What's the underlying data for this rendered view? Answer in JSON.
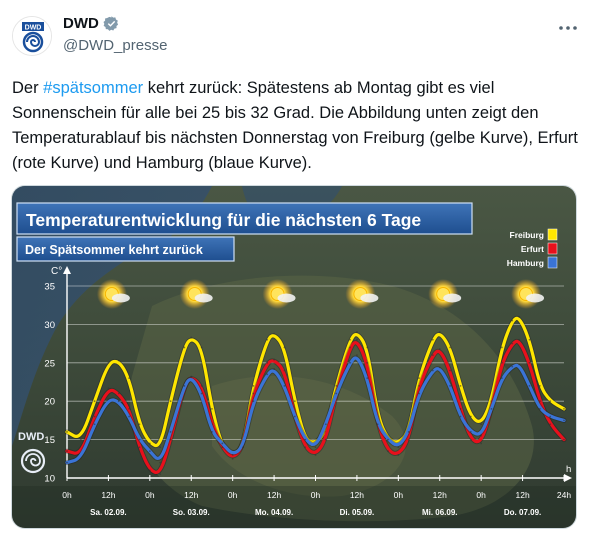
{
  "author": {
    "name": "DWD",
    "handle": "@DWD_presse",
    "logo_text": "DWD",
    "verified": true
  },
  "tweet": {
    "text_before": "Der ",
    "hashtag": "#spätsommer",
    "text_after": " kehrt zurück: Spätestens ab Montag gibt es viel Sonnenschein für alle  bei 25 bis 32 Grad. Die Abbildung unten zeigt den Temperaturablauf bis  nächsten Donnerstag von Freiburg (gelbe Kurve), Erfurt (rote Kurve) und  Hamburg (blaue Kurve)."
  },
  "icons": {
    "verified": "verified-badge-icon",
    "more": "more-options-icon",
    "sun": "sun-cloud-icon",
    "logo": "dwd-logo-icon"
  },
  "chart_data": {
    "type": "line",
    "title": "Temperaturentwicklung für die nächsten 6 Tage",
    "subtitle": "Der Spätsommer kehrt zurück",
    "ylabel": "C°",
    "xlabel_unit": "h",
    "ylim": [
      10,
      35
    ],
    "yticks": [
      10,
      15,
      20,
      25,
      30,
      35
    ],
    "xlim": [
      0,
      144
    ],
    "xticks": [
      {
        "x": 0,
        "label": "0h"
      },
      {
        "x": 12,
        "label": "12h"
      },
      {
        "x": 24,
        "label": "0h"
      },
      {
        "x": 36,
        "label": "12h"
      },
      {
        "x": 48,
        "label": "0h"
      },
      {
        "x": 60,
        "label": "12h"
      },
      {
        "x": 72,
        "label": "0h"
      },
      {
        "x": 84,
        "label": "12h"
      },
      {
        "x": 96,
        "label": "0h"
      },
      {
        "x": 108,
        "label": "12h"
      },
      {
        "x": 120,
        "label": "0h"
      },
      {
        "x": 132,
        "label": "12h"
      },
      {
        "x": 144,
        "label": "24h"
      }
    ],
    "days": [
      {
        "x": 12,
        "label": "Sa. 02.09."
      },
      {
        "x": 36,
        "label": "So. 03.09."
      },
      {
        "x": 60,
        "label": "Mo. 04.09."
      },
      {
        "x": 84,
        "label": "Di. 05.09."
      },
      {
        "x": 108,
        "label": "Mi. 06.09."
      },
      {
        "x": 132,
        "label": "Do. 07.09."
      }
    ],
    "sun_positions": [
      13,
      37,
      61,
      85,
      109,
      133
    ],
    "legend_position": "top-right",
    "branding": "DWD",
    "series": [
      {
        "name": "Freiburg",
        "color": "#ffe600",
        "points": [
          [
            0,
            16
          ],
          [
            4,
            15
          ],
          [
            8,
            20
          ],
          [
            12,
            25
          ],
          [
            15,
            25.3
          ],
          [
            18,
            23
          ],
          [
            21,
            17
          ],
          [
            24,
            14.5
          ],
          [
            27,
            14
          ],
          [
            30,
            20
          ],
          [
            34,
            27
          ],
          [
            36,
            28.3
          ],
          [
            39,
            27
          ],
          [
            42,
            19
          ],
          [
            45,
            14
          ],
          [
            48,
            13
          ],
          [
            51,
            14
          ],
          [
            54,
            22
          ],
          [
            58,
            28
          ],
          [
            60,
            28.8
          ],
          [
            63,
            27
          ],
          [
            66,
            20
          ],
          [
            69,
            15
          ],
          [
            72,
            14.5
          ],
          [
            75,
            16
          ],
          [
            78,
            22
          ],
          [
            82,
            28
          ],
          [
            84,
            29
          ],
          [
            87,
            27
          ],
          [
            90,
            18
          ],
          [
            93,
            15
          ],
          [
            96,
            14.5
          ],
          [
            99,
            16
          ],
          [
            102,
            23
          ],
          [
            106,
            28
          ],
          [
            108,
            29
          ],
          [
            111,
            27
          ],
          [
            114,
            22
          ],
          [
            117,
            18
          ],
          [
            120,
            17
          ],
          [
            123,
            20
          ],
          [
            126,
            27
          ],
          [
            129,
            30.5
          ],
          [
            131,
            31
          ],
          [
            134,
            28
          ],
          [
            137,
            22
          ],
          [
            140,
            20
          ],
          [
            144,
            19
          ]
        ]
      },
      {
        "name": "Erfurt",
        "color": "#e8101c",
        "points": [
          [
            0,
            13.5
          ],
          [
            4,
            13
          ],
          [
            8,
            18
          ],
          [
            12,
            21.7
          ],
          [
            15,
            21
          ],
          [
            18,
            19
          ],
          [
            21,
            14
          ],
          [
            24,
            11
          ],
          [
            27,
            10.5
          ],
          [
            30,
            15
          ],
          [
            34,
            22
          ],
          [
            36,
            23.2
          ],
          [
            39,
            22
          ],
          [
            42,
            17
          ],
          [
            45,
            14
          ],
          [
            48,
            12.5
          ],
          [
            51,
            14
          ],
          [
            54,
            21
          ],
          [
            58,
            25
          ],
          [
            60,
            25.4
          ],
          [
            63,
            24
          ],
          [
            66,
            18
          ],
          [
            69,
            14
          ],
          [
            72,
            13
          ],
          [
            75,
            15
          ],
          [
            78,
            21
          ],
          [
            82,
            27
          ],
          [
            84,
            28
          ],
          [
            87,
            25
          ],
          [
            90,
            17
          ],
          [
            93,
            13.5
          ],
          [
            96,
            13
          ],
          [
            99,
            15
          ],
          [
            102,
            22
          ],
          [
            106,
            26
          ],
          [
            108,
            26.8
          ],
          [
            111,
            24
          ],
          [
            114,
            19
          ],
          [
            117,
            15
          ],
          [
            120,
            14.5
          ],
          [
            123,
            19
          ],
          [
            126,
            25
          ],
          [
            129,
            27.5
          ],
          [
            131,
            28
          ],
          [
            134,
            25
          ],
          [
            137,
            20
          ],
          [
            140,
            17
          ],
          [
            144,
            15
          ]
        ]
      },
      {
        "name": "Hamburg",
        "color": "#3a74d6",
        "points": [
          [
            0,
            12
          ],
          [
            4,
            12.5
          ],
          [
            8,
            17
          ],
          [
            12,
            20.3
          ],
          [
            15,
            20
          ],
          [
            18,
            18
          ],
          [
            21,
            15
          ],
          [
            24,
            13.5
          ],
          [
            27,
            12
          ],
          [
            30,
            16
          ],
          [
            34,
            22
          ],
          [
            36,
            23.2
          ],
          [
            39,
            21
          ],
          [
            42,
            16
          ],
          [
            45,
            14.5
          ],
          [
            48,
            13
          ],
          [
            51,
            14
          ],
          [
            54,
            20
          ],
          [
            58,
            23.5
          ],
          [
            60,
            24.2
          ],
          [
            63,
            22
          ],
          [
            66,
            18
          ],
          [
            69,
            15
          ],
          [
            72,
            14
          ],
          [
            75,
            17
          ],
          [
            78,
            21
          ],
          [
            82,
            25
          ],
          [
            84,
            26
          ],
          [
            87,
            23
          ],
          [
            90,
            17
          ],
          [
            93,
            15
          ],
          [
            96,
            14
          ],
          [
            99,
            16
          ],
          [
            102,
            21
          ],
          [
            106,
            24
          ],
          [
            108,
            24.4
          ],
          [
            111,
            22
          ],
          [
            114,
            18
          ],
          [
            117,
            16
          ],
          [
            120,
            15.5
          ],
          [
            123,
            19
          ],
          [
            126,
            23
          ],
          [
            129,
            24.5
          ],
          [
            131,
            24.8
          ],
          [
            134,
            22
          ],
          [
            137,
            19
          ],
          [
            140,
            18
          ],
          [
            144,
            17.5
          ]
        ]
      }
    ]
  }
}
